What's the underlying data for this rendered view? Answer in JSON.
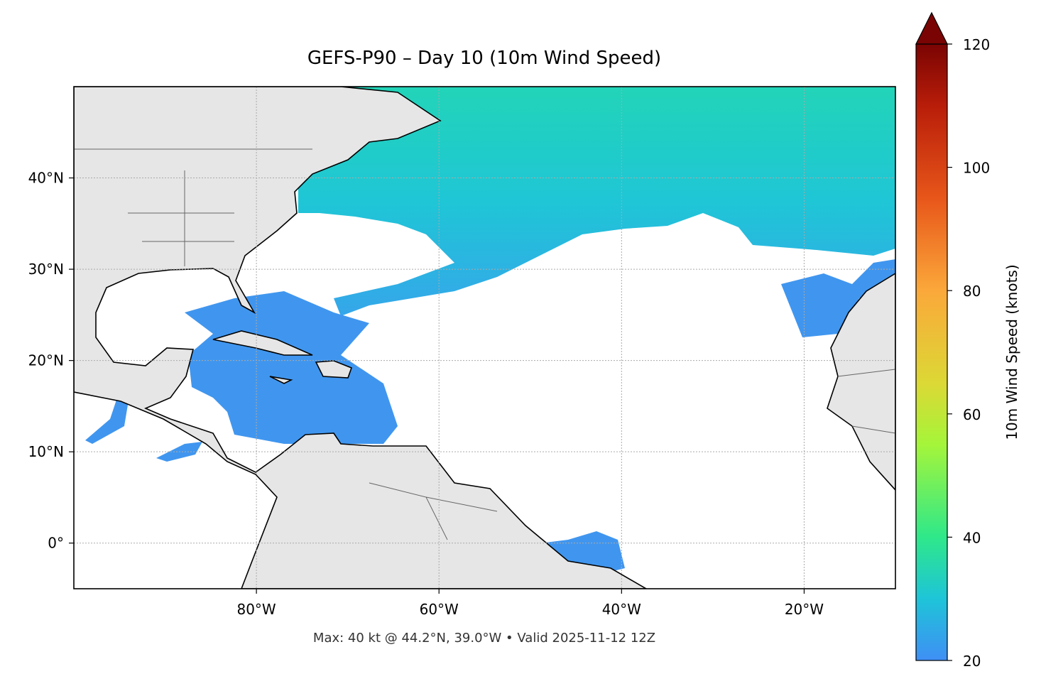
{
  "title": "GEFS-P90 – Day 10 (10m Wind Speed)",
  "footer": "Max: 40 kt @ 44.2°N, 39.0°W • Valid 2025-11-12 12Z",
  "map": {
    "lonlim": [
      -100,
      -10
    ],
    "latlim": [
      -5,
      50
    ],
    "xticks": [
      {
        "value": -80,
        "label": "80°W"
      },
      {
        "value": -60,
        "label": "60°W"
      },
      {
        "value": -40,
        "label": "40°W"
      },
      {
        "value": -20,
        "label": "20°W"
      }
    ],
    "yticks": [
      {
        "value": 0,
        "label": "0°"
      },
      {
        "value": 10,
        "label": "10°N"
      },
      {
        "value": 20,
        "label": "20°N"
      },
      {
        "value": 30,
        "label": "30°N"
      },
      {
        "value": 40,
        "label": "40°N"
      }
    ],
    "grid": true
  },
  "colorbar": {
    "label": "10m Wind Speed (knots)",
    "lim": [
      20,
      120
    ],
    "ticks": [
      20,
      40,
      60,
      80,
      100,
      120
    ]
  }
}
